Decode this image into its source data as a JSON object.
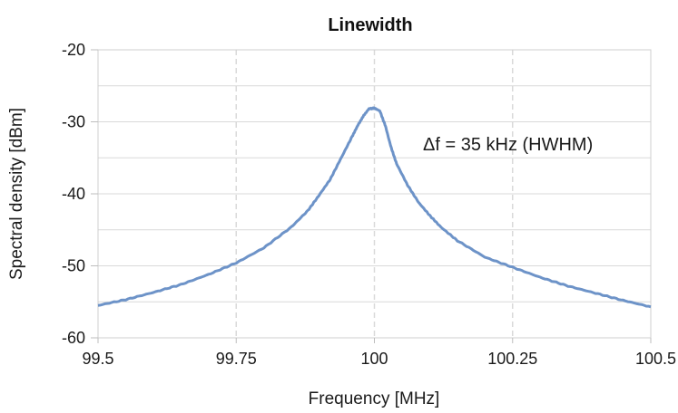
{
  "chart_data": {
    "type": "line",
    "title": "Linewidth",
    "xlabel": "Frequency [MHz]",
    "ylabel": "Spectral density [dBm]",
    "xlim": [
      99.5,
      100.5
    ],
    "ylim": [
      -60,
      -20
    ],
    "x_ticks": [
      99.5,
      99.75,
      100,
      100.25,
      100.5
    ],
    "x_tick_labels": [
      "99.5",
      "99.75",
      "100",
      "100.25",
      "100.5"
    ],
    "y_ticks": [
      -60,
      -50,
      -40,
      -30,
      -20
    ],
    "y_tick_labels": [
      "-60",
      "-50",
      "-40",
      "-30",
      "-20"
    ],
    "grid": true,
    "annotation": "Δf = 35 kHz (HWHM)",
    "series": [
      {
        "color": "#6d93c8",
        "x": [
          99.5,
          99.55,
          99.6,
          99.65,
          99.7,
          99.75,
          99.8,
          99.85,
          99.88,
          99.9,
          99.92,
          99.94,
          99.96,
          99.97,
          99.98,
          99.99,
          100.0,
          100.01,
          100.02,
          100.03,
          100.04,
          100.06,
          100.08,
          100.1,
          100.12,
          100.15,
          100.2,
          100.25,
          100.3,
          100.35,
          100.4,
          100.45,
          100.5
        ],
        "y": [
          -55.5,
          -54.7,
          -53.7,
          -52.6,
          -51.2,
          -49.6,
          -47.5,
          -44.6,
          -42.3,
          -40.2,
          -38.0,
          -35.0,
          -32.0,
          -30.5,
          -29.2,
          -28.2,
          -28.1,
          -28.5,
          -30.6,
          -33.5,
          -35.8,
          -38.8,
          -41.2,
          -43.0,
          -44.6,
          -46.5,
          -48.8,
          -50.2,
          -51.6,
          -52.8,
          -53.8,
          -54.8,
          -55.7
        ]
      }
    ]
  }
}
